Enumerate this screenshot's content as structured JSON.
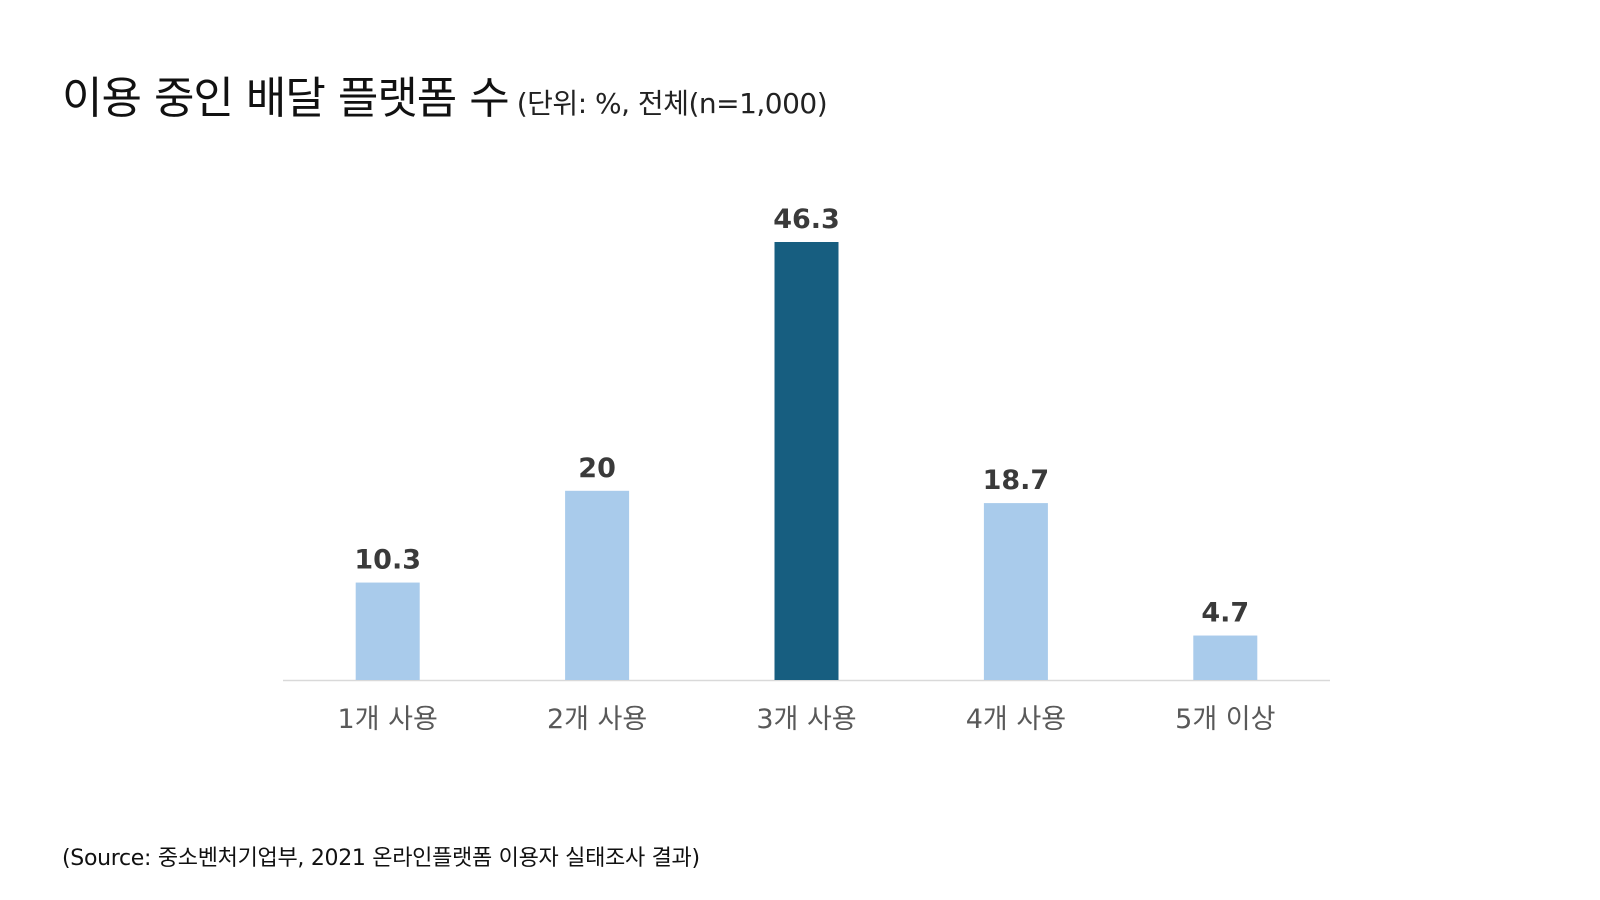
{
  "chart_data": {
    "type": "bar",
    "title": "이용 중인 배달 플랫폼 수",
    "subtitle": "(단위: %, 전체(n=1,000)",
    "categories": [
      "1개 사용",
      "2개 사용",
      "3개 사용",
      "4개 사용",
      "5개 이상"
    ],
    "values": [
      10.3,
      20,
      46.3,
      18.7,
      4.7
    ],
    "data_labels": [
      "10.3",
      "20",
      "46.3",
      "18.7",
      "4.7"
    ],
    "highlight_index": 2,
    "xlabel": "",
    "ylabel": "",
    "ylim": [
      0,
      46.3
    ],
    "grid": false,
    "legend": "none",
    "colors": {
      "bar": "#a9cbeb",
      "highlight": "#175e80",
      "axis": "#d9d9d9",
      "data_label": "#3a3a3a",
      "tick_label": "#595959"
    }
  },
  "source": "(Source: 중소벤처기업부, 2021 온라인플랫폼 이용자 실태조사 결과)"
}
